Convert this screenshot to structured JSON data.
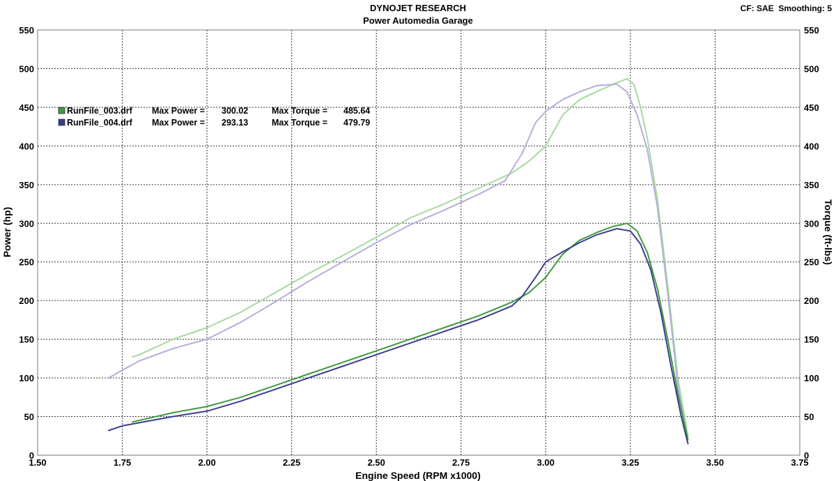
{
  "chart_data": {
    "type": "line",
    "title": "DYNOJET RESEARCH",
    "subtitle": "Power Automedia Garage",
    "corner_info": "CF: SAE  Smoothing: 5",
    "xlabel": "Engine Speed (RPM x1000)",
    "ylabel_left": "Power (hp)",
    "ylabel_right": "Torque (ft-lbs)",
    "xlim": [
      1.5,
      3.75
    ],
    "ylim": [
      0,
      550
    ],
    "x_ticks": [
      "1.50",
      "1.75",
      "2.00",
      "2.25",
      "2.50",
      "2.75",
      "3.00",
      "3.25",
      "3.50",
      "3.75"
    ],
    "x_tick_values": [
      1.5,
      1.75,
      2.0,
      2.25,
      2.5,
      2.75,
      3.0,
      3.25,
      3.5,
      3.75
    ],
    "y_ticks": [
      "0",
      "50",
      "100",
      "150",
      "200",
      "250",
      "300",
      "350",
      "400",
      "450",
      "500",
      "550"
    ],
    "y_tick_values": [
      0,
      50,
      100,
      150,
      200,
      250,
      300,
      350,
      400,
      450,
      500,
      550
    ],
    "grid": true,
    "legend_position": "top-left",
    "legend": [
      {
        "file": "RunFile_003.drf",
        "power_label": "Max Power =",
        "power_value": "300.02",
        "torque_label": "Max Torque =",
        "torque_value": "485.64",
        "color": "#3e9a3e"
      },
      {
        "file": "RunFile_004.drf",
        "power_label": "Max Power =",
        "power_value": "293.13",
        "torque_label": "Max Torque =",
        "torque_value": "479.79",
        "color": "#3a3d8f"
      }
    ],
    "series": [
      {
        "name": "RunFile_003 Torque",
        "color": "#a8d8a0",
        "x": [
          1.78,
          1.8,
          1.9,
          2.0,
          2.1,
          2.2,
          2.3,
          2.4,
          2.5,
          2.6,
          2.7,
          2.8,
          2.9,
          2.95,
          3.0,
          3.05,
          3.1,
          3.15,
          3.2,
          3.24,
          3.26,
          3.28,
          3.3,
          3.33,
          3.36,
          3.39,
          3.42
        ],
        "y": [
          127,
          130,
          150,
          165,
          185,
          210,
          235,
          258,
          282,
          307,
          325,
          345,
          365,
          380,
          400,
          440,
          460,
          470,
          480,
          487,
          480,
          450,
          410,
          330,
          220,
          100,
          25
        ]
      },
      {
        "name": "RunFile_004 Torque",
        "color": "#b2afd8",
        "x": [
          1.71,
          1.75,
          1.8,
          1.9,
          2.0,
          2.1,
          2.2,
          2.3,
          2.4,
          2.5,
          2.6,
          2.7,
          2.8,
          2.88,
          2.93,
          2.97,
          3.0,
          3.05,
          3.1,
          3.15,
          3.21,
          3.24,
          3.27,
          3.3,
          3.33,
          3.36,
          3.39,
          3.42
        ],
        "y": [
          100,
          110,
          122,
          138,
          150,
          172,
          198,
          225,
          250,
          275,
          298,
          317,
          337,
          355,
          390,
          430,
          445,
          460,
          470,
          478,
          480,
          470,
          440,
          395,
          320,
          210,
          90,
          15
        ]
      },
      {
        "name": "RunFile_003 Power",
        "color": "#3e9a3e",
        "x": [
          1.78,
          1.85,
          1.9,
          2.0,
          2.1,
          2.2,
          2.3,
          2.4,
          2.5,
          2.6,
          2.7,
          2.8,
          2.9,
          2.95,
          3.0,
          3.05,
          3.1,
          3.15,
          3.2,
          3.24,
          3.27,
          3.3,
          3.33,
          3.36,
          3.39,
          3.42
        ],
        "y": [
          43,
          50,
          55,
          63,
          75,
          90,
          105,
          120,
          135,
          150,
          165,
          180,
          198,
          210,
          230,
          260,
          278,
          288,
          296,
          300,
          290,
          262,
          215,
          150,
          80,
          20
        ]
      },
      {
        "name": "RunFile_004 Power",
        "color": "#3a3d8f",
        "x": [
          1.71,
          1.75,
          1.8,
          1.9,
          2.0,
          2.1,
          2.2,
          2.3,
          2.4,
          2.5,
          2.6,
          2.7,
          2.8,
          2.9,
          2.93,
          2.97,
          3.0,
          3.05,
          3.1,
          3.15,
          3.21,
          3.25,
          3.28,
          3.31,
          3.34,
          3.37,
          3.4,
          3.42
        ],
        "y": [
          32,
          38,
          42,
          50,
          57,
          70,
          85,
          100,
          115,
          130,
          145,
          160,
          175,
          193,
          205,
          230,
          250,
          263,
          275,
          285,
          293,
          290,
          273,
          240,
          185,
          115,
          50,
          15
        ]
      }
    ]
  }
}
